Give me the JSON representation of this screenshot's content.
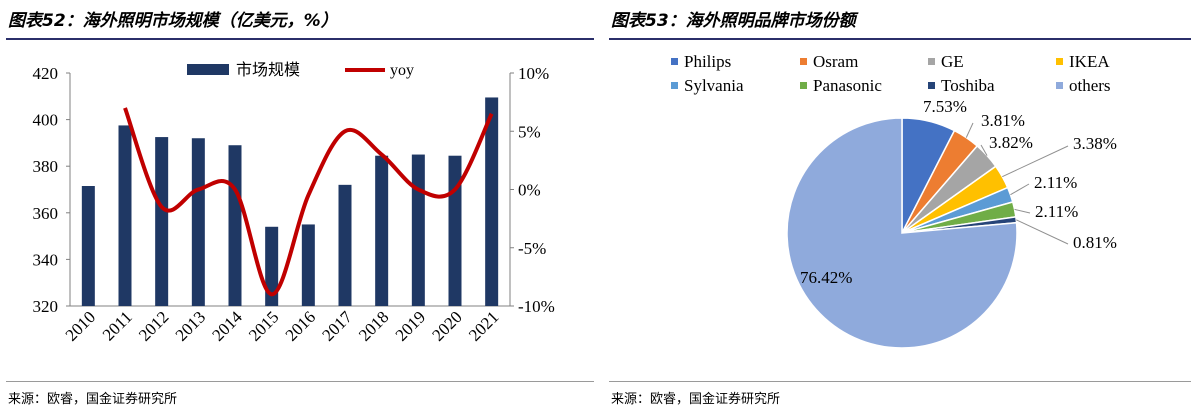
{
  "left": {
    "title": "图表52：海外照明市场规模（亿美元，%）",
    "source": "来源：欧睿，国金证券研究所"
  },
  "right": {
    "title": "图表53：海外照明品牌市场份额",
    "source": "来源：欧睿，国金证券研究所"
  },
  "chart_data": [
    {
      "type": "bar",
      "categories": [
        "2010",
        "2011",
        "2012",
        "2013",
        "2014",
        "2015",
        "2016",
        "2017",
        "2018",
        "2019",
        "2020",
        "2021"
      ],
      "series": [
        {
          "name": "市场规模",
          "type": "bar",
          "axis": "left",
          "color": "#1f3864",
          "values": [
            371.5,
            397.5,
            392.5,
            392,
            389,
            354,
            355,
            372,
            384.5,
            385,
            384.5,
            409.5
          ]
        },
        {
          "name": "yoy",
          "type": "line",
          "axis": "right",
          "color": "#c00000",
          "values": [
            null,
            7.0,
            -1.5,
            0.0,
            0.0,
            -9.0,
            -0.5,
            5.0,
            3.0,
            0.0,
            0.0,
            6.5
          ]
        }
      ],
      "ylim": [
        320,
        420
      ],
      "yticks": [
        "320",
        "340",
        "360",
        "380",
        "400",
        "420"
      ],
      "y2lim": [
        -10,
        10
      ],
      "y2ticks": [
        "-10%",
        "-5%",
        "0%",
        "5%",
        "10%"
      ],
      "legend_position": "top",
      "grid": false
    },
    {
      "type": "pie",
      "labels": [
        "Philips",
        "Osram",
        "GE",
        "IKEA",
        "Sylvania",
        "Panasonic",
        "Toshiba",
        "others"
      ],
      "values": [
        7.53,
        3.81,
        3.82,
        3.38,
        2.11,
        2.11,
        0.81,
        76.42
      ],
      "value_labels": [
        "7.53%",
        "3.81%",
        "3.82%",
        "3.38%",
        "2.11%",
        "2.11%",
        "0.81%",
        "76.42%"
      ],
      "colors": [
        "#4472c4",
        "#ed7d31",
        "#a5a5a5",
        "#ffc000",
        "#5b9bd5",
        "#70ad47",
        "#264478",
        "#8faadc"
      ],
      "legend_position": "top"
    }
  ]
}
